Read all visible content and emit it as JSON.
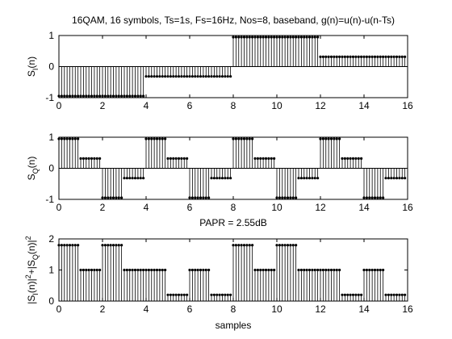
{
  "figure": {
    "title": "16QAM, 16 symbols, Ts=1s, Fs=16Hz, Nos=8, baseband, g(n)=u(n)-u(n-Ts)",
    "between_label": "PAPR = 2.55dB",
    "xlabel": "samples"
  },
  "colors": {
    "stem": "#000000",
    "axes": "#000000",
    "background": "#ffffff"
  },
  "chart_data": [
    {
      "type": "stem",
      "panel": "top",
      "ylabel_parts": [
        [
          "S",
          "normal"
        ],
        [
          "I",
          "sub"
        ],
        [
          "(n)",
          "normal"
        ]
      ],
      "xlim": [
        0,
        16
      ],
      "ylim": [
        -1,
        1
      ],
      "xticks": [
        "0",
        "2",
        "4",
        "6",
        "8",
        "10",
        "12",
        "14",
        "16"
      ],
      "yticks": [
        "-1",
        "0",
        "1"
      ],
      "samples_per_symbol": 8,
      "symbol_values": [
        -0.949,
        -0.949,
        -0.949,
        -0.949,
        -0.316,
        -0.316,
        -0.316,
        -0.316,
        0.949,
        0.949,
        0.949,
        0.949,
        0.316,
        0.316,
        0.316,
        0.316
      ]
    },
    {
      "type": "stem",
      "panel": "middle",
      "ylabel_parts": [
        [
          "S",
          "normal"
        ],
        [
          "Q",
          "sub"
        ],
        [
          "(n)",
          "normal"
        ]
      ],
      "xlim": [
        0,
        16
      ],
      "ylim": [
        -1,
        1
      ],
      "xticks": [
        "0",
        "2",
        "4",
        "6",
        "8",
        "10",
        "12",
        "14",
        "16"
      ],
      "yticks": [
        "-1",
        "0",
        "1"
      ],
      "samples_per_symbol": 8,
      "symbol_values": [
        0.949,
        0.316,
        -0.949,
        -0.316,
        0.949,
        0.316,
        -0.949,
        -0.316,
        0.949,
        0.316,
        -0.949,
        -0.316,
        0.949,
        0.316,
        -0.949,
        -0.316
      ]
    },
    {
      "type": "stem",
      "panel": "bottom",
      "ylabel_parts": [
        [
          "|S",
          "normal"
        ],
        [
          "I",
          "sub"
        ],
        [
          "(n)|",
          "normal"
        ],
        [
          "2",
          "sup"
        ],
        [
          "+|S",
          "normal"
        ],
        [
          "Q",
          "sub"
        ],
        [
          "(n)|",
          "normal"
        ],
        [
          "2",
          "sup"
        ]
      ],
      "xlim": [
        0,
        16
      ],
      "ylim": [
        0,
        2
      ],
      "xticks": [
        "0",
        "2",
        "4",
        "6",
        "8",
        "10",
        "12",
        "14",
        "16"
      ],
      "yticks": [
        "0",
        "1",
        "2"
      ],
      "samples_per_symbol": 8,
      "symbol_values": [
        1.8,
        1.0,
        1.8,
        1.0,
        1.0,
        0.2,
        1.0,
        0.2,
        1.8,
        1.0,
        1.8,
        1.0,
        1.0,
        0.2,
        1.0,
        0.2
      ]
    }
  ]
}
